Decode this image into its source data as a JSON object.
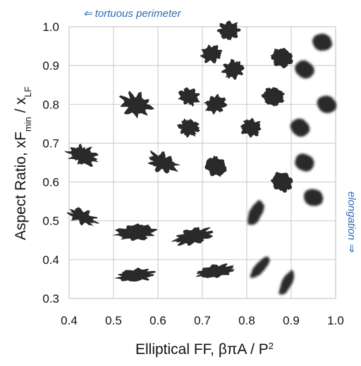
{
  "chart_data": {
    "type": "scatter",
    "xlabel": "Elliptical FF, βπA / P²",
    "ylabel": "Aspect Ratio, xFmin / xLF",
    "ylabel_parts": {
      "main": "Aspect Ratio, xF",
      "sub1": "min",
      "mid": " / x",
      "sub2": "LF"
    },
    "xlabel_parts": {
      "main": "Elliptical FF, βπA / P",
      "sup": "2"
    },
    "xlim": [
      0.4,
      1.0
    ],
    "ylim": [
      0.3,
      1.0
    ],
    "x_ticks": [
      "0.4",
      "0.5",
      "0.6",
      "0.7",
      "0.8",
      "0.9",
      "1.0"
    ],
    "y_ticks": [
      "0.3",
      "0.4",
      "0.5",
      "0.6",
      "0.7",
      "0.8",
      "0.9",
      "1.0"
    ],
    "grid": true,
    "annotations": [
      {
        "text": "⇐ tortuous perimeter",
        "position": "top"
      },
      {
        "text": "elongation ⇒",
        "position": "right"
      }
    ],
    "annotation_color": "#2e6db4",
    "particle_color": "#2a2a2a",
    "points": [
      {
        "x": 0.43,
        "y": 0.67,
        "shape": "tortuous",
        "blur": false
      },
      {
        "x": 0.43,
        "y": 0.51,
        "shape": "tortuous",
        "blur": false
      },
      {
        "x": 0.55,
        "y": 0.8,
        "shape": "tortuous",
        "blur": false
      },
      {
        "x": 0.55,
        "y": 0.47,
        "shape": "elongated-rough",
        "blur": false
      },
      {
        "x": 0.55,
        "y": 0.36,
        "shape": "elongated-rough",
        "blur": false
      },
      {
        "x": 0.61,
        "y": 0.65,
        "shape": "tortuous",
        "blur": false
      },
      {
        "x": 0.67,
        "y": 0.82,
        "shape": "rough",
        "blur": false
      },
      {
        "x": 0.67,
        "y": 0.74,
        "shape": "rough",
        "blur": false
      },
      {
        "x": 0.68,
        "y": 0.46,
        "shape": "elongated-rough",
        "blur": false
      },
      {
        "x": 0.72,
        "y": 0.93,
        "shape": "rough",
        "blur": false
      },
      {
        "x": 0.73,
        "y": 0.64,
        "shape": "compact-rough",
        "blur": false
      },
      {
        "x": 0.73,
        "y": 0.8,
        "shape": "rough",
        "blur": false
      },
      {
        "x": 0.73,
        "y": 0.37,
        "shape": "elongated-rough",
        "blur": false
      },
      {
        "x": 0.76,
        "y": 0.99,
        "shape": "rough",
        "blur": false
      },
      {
        "x": 0.77,
        "y": 0.89,
        "shape": "rough",
        "blur": false
      },
      {
        "x": 0.81,
        "y": 0.74,
        "shape": "rough",
        "blur": false
      },
      {
        "x": 0.82,
        "y": 0.52,
        "shape": "elongated",
        "blur": true
      },
      {
        "x": 0.83,
        "y": 0.38,
        "shape": "elongated",
        "blur": true
      },
      {
        "x": 0.86,
        "y": 0.82,
        "shape": "compact-rough",
        "blur": false
      },
      {
        "x": 0.88,
        "y": 0.92,
        "shape": "compact-rough",
        "blur": false
      },
      {
        "x": 0.88,
        "y": 0.6,
        "shape": "compact-rough",
        "blur": false
      },
      {
        "x": 0.89,
        "y": 0.34,
        "shape": "elongated",
        "blur": true
      },
      {
        "x": 0.92,
        "y": 0.74,
        "shape": "smooth",
        "blur": true
      },
      {
        "x": 0.93,
        "y": 0.89,
        "shape": "smooth",
        "blur": true
      },
      {
        "x": 0.93,
        "y": 0.65,
        "shape": "smooth",
        "blur": true
      },
      {
        "x": 0.95,
        "y": 0.56,
        "shape": "smooth",
        "blur": true
      },
      {
        "x": 0.97,
        "y": 0.96,
        "shape": "smooth",
        "blur": true
      },
      {
        "x": 0.98,
        "y": 0.8,
        "shape": "smooth",
        "blur": true
      }
    ]
  }
}
